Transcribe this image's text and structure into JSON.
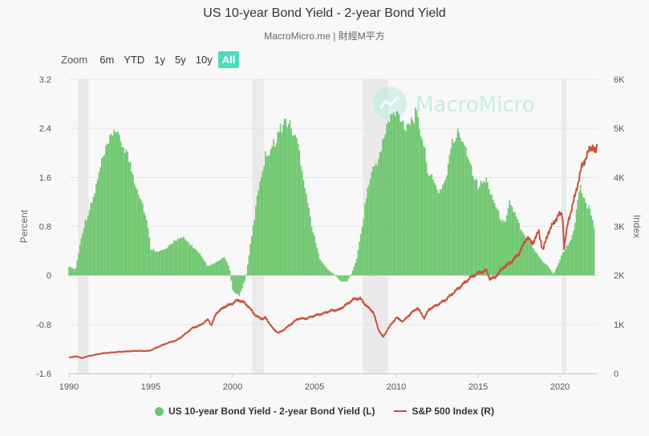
{
  "header": {
    "title": "US 10-year Bond Yield - 2-year Bond Yield",
    "subtitle": "MacroMicro.me | 財經M平方"
  },
  "range_selector": {
    "zoom_label": "Zoom",
    "buttons": [
      "6m",
      "YTD",
      "1y",
      "5y",
      "10y",
      "All"
    ],
    "active": "All"
  },
  "watermark": {
    "text": "MacroMicro"
  },
  "colors": {
    "bars": "#6cc66c",
    "line": "#c9523a",
    "recession": "#e6e6e6",
    "grid": "#e4e4e4",
    "accent": "#52d8c1"
  },
  "chart_data": {
    "type": "bar+line",
    "title": "US 10-year Bond Yield - 2-year Bond Yield",
    "x_ticks": [
      "1990",
      "1995",
      "2000",
      "2005",
      "2010",
      "2015",
      "2020"
    ],
    "xlim": [
      1990,
      2022.3
    ],
    "left_axis": {
      "label": "Percent",
      "ylim": [
        -1.6,
        3.2
      ],
      "ticks": [
        "3.2",
        "2.4",
        "1.6",
        "0.8",
        "0",
        "-0.8",
        "-1.6"
      ]
    },
    "right_axis": {
      "label": "Index",
      "ylim": [
        0,
        6000
      ],
      "ticks": [
        "6K",
        "5K",
        "4K",
        "3K",
        "2K",
        "1K",
        "0"
      ]
    },
    "recession_bands": [
      [
        1990.55,
        1991.2
      ],
      [
        2001.2,
        2001.9
      ],
      [
        2007.95,
        2009.5
      ],
      [
        2020.1,
        2020.4
      ]
    ],
    "series": [
      {
        "name": "US 10-year Bond Yield - 2-year Bond Yield (L)",
        "type": "bar",
        "axis": "left",
        "points": [
          [
            1990,
            0.15
          ],
          [
            1990.4,
            0.1
          ],
          [
            1990.6,
            0.4
          ],
          [
            1990.8,
            0.7
          ],
          [
            1991,
            0.9
          ],
          [
            1991.5,
            1.3
          ],
          [
            1992,
            1.9
          ],
          [
            1992.5,
            2.25
          ],
          [
            1992.8,
            2.5
          ],
          [
            1993,
            2.3
          ],
          [
            1993.5,
            2.1
          ],
          [
            1993.8,
            1.8
          ],
          [
            1994,
            1.6
          ],
          [
            1994.5,
            1.2
          ],
          [
            1994.8,
            0.85
          ],
          [
            1995,
            0.45
          ],
          [
            1995.5,
            0.4
          ],
          [
            1996,
            0.45
          ],
          [
            1996.5,
            0.6
          ],
          [
            1997,
            0.62
          ],
          [
            1997.5,
            0.5
          ],
          [
            1998,
            0.35
          ],
          [
            1998.5,
            0.15
          ],
          [
            1999,
            0.22
          ],
          [
            1999.5,
            0.3
          ],
          [
            1999.8,
            0.15
          ],
          [
            2000,
            -0.25
          ],
          [
            2000.4,
            -0.35
          ],
          [
            2000.8,
            -0.05
          ],
          [
            2001,
            0.35
          ],
          [
            2001.3,
            0.9
          ],
          [
            2001.6,
            1.5
          ],
          [
            2002,
            2.0
          ],
          [
            2002.5,
            2.2
          ],
          [
            2003,
            2.5
          ],
          [
            2003.3,
            2.6
          ],
          [
            2003.6,
            2.45
          ],
          [
            2004,
            2.2
          ],
          [
            2004.3,
            1.7
          ],
          [
            2004.6,
            1.2
          ],
          [
            2004.9,
            0.75
          ],
          [
            2005.3,
            0.3
          ],
          [
            2005.8,
            0.1
          ],
          [
            2006.2,
            0.02
          ],
          [
            2006.6,
            -0.1
          ],
          [
            2007,
            -0.1
          ],
          [
            2007.3,
            0.05
          ],
          [
            2007.6,
            0.3
          ],
          [
            2007.9,
            0.8
          ],
          [
            2008.2,
            1.4
          ],
          [
            2008.6,
            1.8
          ],
          [
            2009,
            2.0
          ],
          [
            2009.4,
            2.5
          ],
          [
            2009.8,
            2.7
          ],
          [
            2010.2,
            2.7
          ],
          [
            2010.5,
            2.5
          ],
          [
            2010.9,
            2.6
          ],
          [
            2011.2,
            2.7
          ],
          [
            2011.6,
            2.3
          ],
          [
            2011.9,
            1.8
          ],
          [
            2012.2,
            1.6
          ],
          [
            2012.6,
            1.4
          ],
          [
            2013,
            1.6
          ],
          [
            2013.4,
            2.2
          ],
          [
            2013.8,
            2.4
          ],
          [
            2014.2,
            2.2
          ],
          [
            2014.6,
            1.8
          ],
          [
            2015,
            1.5
          ],
          [
            2015.5,
            1.6
          ],
          [
            2015.9,
            1.3
          ],
          [
            2016.3,
            1.0
          ],
          [
            2016.6,
            0.85
          ],
          [
            2016.9,
            1.25
          ],
          [
            2017.3,
            1.0
          ],
          [
            2017.7,
            0.7
          ],
          [
            2018.1,
            0.6
          ],
          [
            2018.5,
            0.4
          ],
          [
            2018.9,
            0.25
          ],
          [
            2019.3,
            0.15
          ],
          [
            2019.6,
            0.02
          ],
          [
            2019.9,
            0.2
          ],
          [
            2020.2,
            0.4
          ],
          [
            2020.6,
            0.55
          ],
          [
            2020.9,
            0.85
          ],
          [
            2021.2,
            1.5
          ],
          [
            2021.5,
            1.25
          ],
          [
            2021.8,
            1.1
          ],
          [
            2022.1,
            0.8
          ]
        ]
      },
      {
        "name": "S&P 500 Index (R)",
        "type": "line",
        "axis": "right",
        "points": [
          [
            1990,
            330
          ],
          [
            1990.5,
            350
          ],
          [
            1990.8,
            310
          ],
          [
            1991,
            340
          ],
          [
            1992,
            410
          ],
          [
            1993,
            440
          ],
          [
            1994,
            460
          ],
          [
            1994.9,
            460
          ],
          [
            1995.5,
            550
          ],
          [
            1996,
            620
          ],
          [
            1996.6,
            680
          ],
          [
            1997,
            780
          ],
          [
            1997.6,
            940
          ],
          [
            1998,
            980
          ],
          [
            1998.5,
            1100
          ],
          [
            1998.7,
            980
          ],
          [
            1999,
            1230
          ],
          [
            1999.5,
            1360
          ],
          [
            2000,
            1430
          ],
          [
            2000.3,
            1500
          ],
          [
            2000.7,
            1450
          ],
          [
            2001,
            1350
          ],
          [
            2001.4,
            1180
          ],
          [
            2001.8,
            1110
          ],
          [
            2002,
            1140
          ],
          [
            2002.5,
            900
          ],
          [
            2002.8,
            830
          ],
          [
            2003,
            860
          ],
          [
            2003.5,
            990
          ],
          [
            2004,
            1120
          ],
          [
            2004.5,
            1120
          ],
          [
            2005,
            1180
          ],
          [
            2005.5,
            1220
          ],
          [
            2006,
            1280
          ],
          [
            2006.5,
            1300
          ],
          [
            2007,
            1420
          ],
          [
            2007.4,
            1520
          ],
          [
            2007.8,
            1530
          ],
          [
            2008.2,
            1370
          ],
          [
            2008.6,
            1250
          ],
          [
            2008.9,
            900
          ],
          [
            2009.2,
            740
          ],
          [
            2009.5,
            920
          ],
          [
            2010,
            1140
          ],
          [
            2010.4,
            1060
          ],
          [
            2010.9,
            1230
          ],
          [
            2011.3,
            1340
          ],
          [
            2011.7,
            1130
          ],
          [
            2012,
            1310
          ],
          [
            2012.5,
            1400
          ],
          [
            2013,
            1500
          ],
          [
            2013.5,
            1650
          ],
          [
            2014,
            1800
          ],
          [
            2014.5,
            1950
          ],
          [
            2015,
            2050
          ],
          [
            2015.5,
            2100
          ],
          [
            2015.7,
            1940
          ],
          [
            2016,
            1950
          ],
          [
            2016.5,
            2150
          ],
          [
            2017,
            2270
          ],
          [
            2017.5,
            2450
          ],
          [
            2018,
            2790
          ],
          [
            2018.3,
            2640
          ],
          [
            2018.7,
            2900
          ],
          [
            2018.95,
            2510
          ],
          [
            2019.3,
            2890
          ],
          [
            2019.9,
            3230
          ],
          [
            2020.15,
            3250
          ],
          [
            2020.25,
            2580
          ],
          [
            2020.5,
            3100
          ],
          [
            2020.9,
            3600
          ],
          [
            2021.3,
            4180
          ],
          [
            2021.7,
            4500
          ],
          [
            2022,
            4650
          ],
          [
            2022.2,
            4480
          ],
          [
            2022.3,
            4700
          ]
        ]
      }
    ]
  },
  "legend": {
    "bars": "US 10-year Bond Yield - 2-year Bond Yield (L)",
    "line": "S&P 500 Index (R)"
  }
}
